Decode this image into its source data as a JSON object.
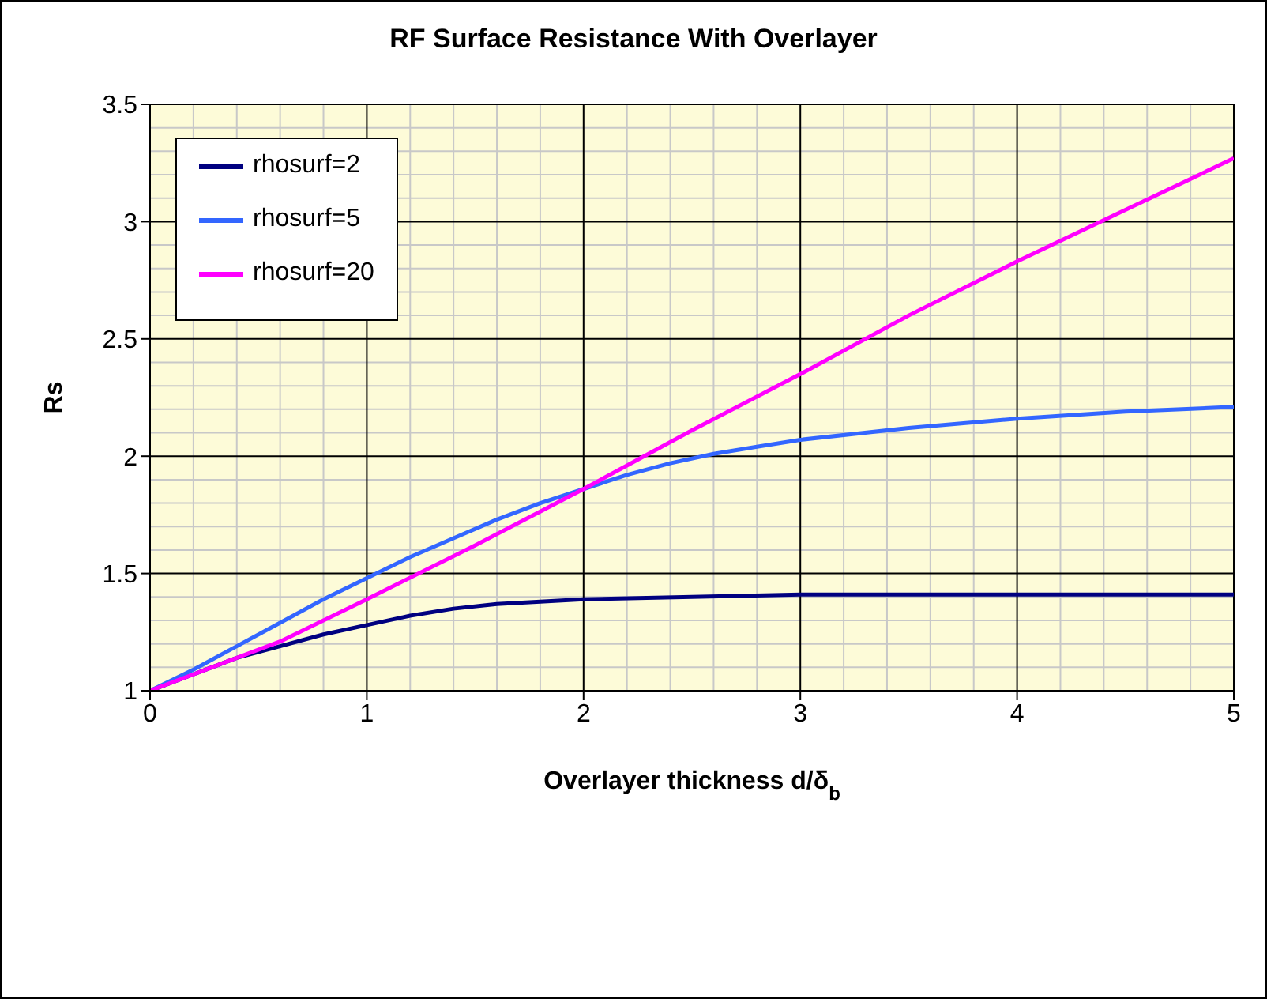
{
  "chart_data": {
    "type": "line",
    "title": "RF Surface Resistance With Overlayer",
    "xlabel": "Overlayer thickness d/δ$_{b}$",
    "ylabel": "Rs",
    "xlim": [
      0,
      5
    ],
    "xticks": [
      0,
      1,
      2,
      3,
      4,
      5
    ],
    "ylim": [
      1,
      3.5
    ],
    "yticks": [
      1,
      1.5,
      2,
      2.5,
      3,
      3.5
    ],
    "grid": true,
    "legend": "top left",
    "marker": "none",
    "line_style": "solid",
    "series": [
      {
        "name": "rhosurf=2",
        "color": "#000080",
        "x": [
          0,
          0.2,
          0.4,
          0.6,
          0.8,
          1.0,
          1.2,
          1.4,
          1.6,
          1.8,
          2.0,
          2.5,
          3.0,
          3.5,
          4.0,
          4.5,
          5.0
        ],
        "values": [
          1,
          1.07,
          1.14,
          1.19,
          1.24,
          1.28,
          1.32,
          1.35,
          1.37,
          1.38,
          1.39,
          1.4,
          1.41,
          1.41,
          1.41,
          1.41,
          1.41
        ]
      },
      {
        "name": "rhosurf=5",
        "color": "#3366ff",
        "x": [
          0,
          0.2,
          0.4,
          0.6,
          0.8,
          1.0,
          1.2,
          1.4,
          1.6,
          1.8,
          2.0,
          2.2,
          2.4,
          2.6,
          2.8,
          3.0,
          3.5,
          4.0,
          4.5,
          5.0
        ],
        "values": [
          1,
          1.09,
          1.19,
          1.29,
          1.39,
          1.48,
          1.57,
          1.65,
          1.73,
          1.8,
          1.86,
          1.92,
          1.97,
          2.01,
          2.04,
          2.07,
          2.12,
          2.16,
          2.19,
          2.21
        ]
      },
      {
        "name": "rhosurf=20",
        "color": "#ff00ff",
        "x": [
          0,
          0.2,
          0.4,
          0.6,
          1.0,
          1.5,
          2.0,
          2.5,
          3.0,
          3.5,
          4.0,
          4.5,
          5.0
        ],
        "values": [
          1,
          1.07,
          1.14,
          1.21,
          1.39,
          1.62,
          1.86,
          2.11,
          2.35,
          2.6,
          2.83,
          3.05,
          3.27
        ]
      }
    ]
  }
}
